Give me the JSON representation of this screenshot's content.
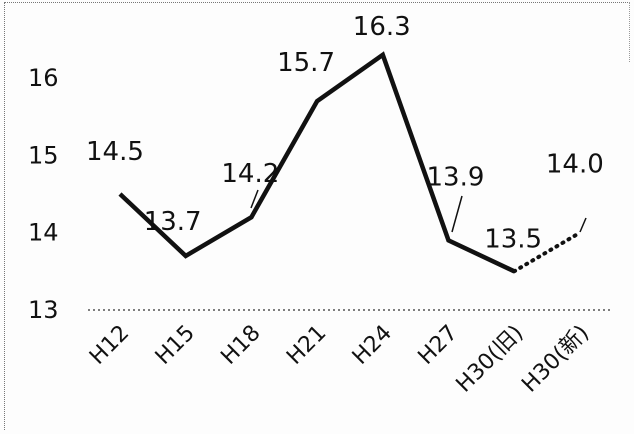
{
  "chart_data": {
    "type": "line",
    "categories": [
      "H12",
      "H15",
      "H18",
      "H21",
      "H24",
      "H27",
      "H30(旧)",
      "H30(新)"
    ],
    "series": [
      {
        "values": [
          14.5,
          13.7,
          14.2,
          15.7,
          16.3,
          13.9,
          13.5,
          null
        ],
        "line_style": "solid"
      },
      {
        "values": [
          null,
          null,
          null,
          null,
          null,
          null,
          13.5,
          14.0
        ],
        "line_style": "dotted"
      }
    ],
    "data_labels": [
      "14.5",
      "13.7",
      "14.2",
      "15.7",
      "16.3",
      "13.9",
      "13.5",
      "14.0"
    ],
    "yticks": [
      "13",
      "14",
      "15",
      "16"
    ],
    "ylim": [
      13,
      16.6
    ],
    "title": "",
    "xlabel": "",
    "ylabel": "",
    "grid": false,
    "colors": {
      "line": "#111111",
      "baseline": "#555555",
      "text": "#111111"
    }
  }
}
